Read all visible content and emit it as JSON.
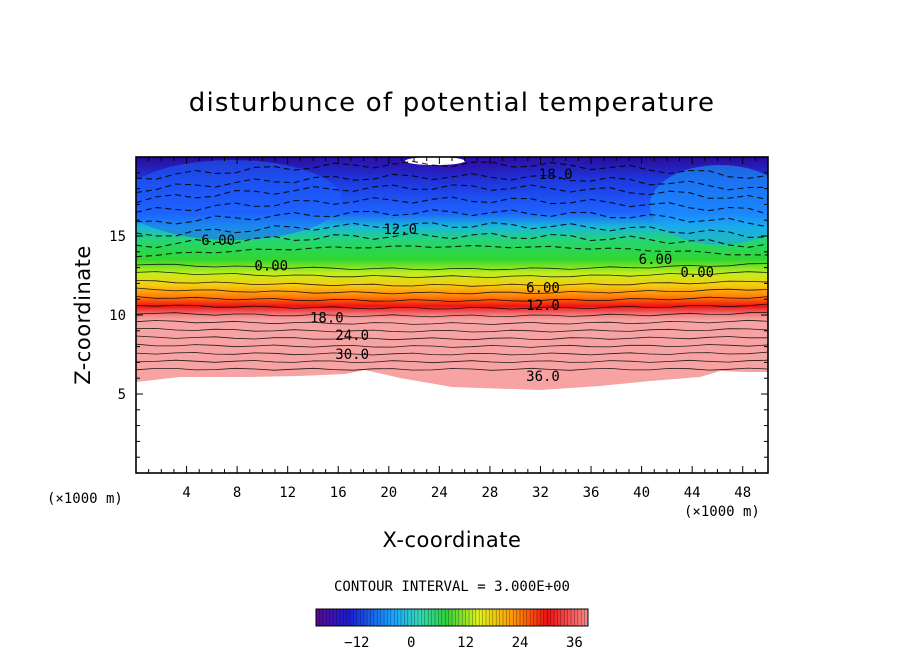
{
  "chart_data": {
    "type": "heatmap",
    "title": "disturbunce of potential temperature",
    "xlabel": "X-coordinate",
    "ylabel": "Z-coordinate",
    "x_unit": "(×1000 m)",
    "x_unit_right": "(×1000 m)",
    "xlim": [
      0,
      50
    ],
    "ylim": [
      0,
      20
    ],
    "x_ticks": [
      4,
      8,
      12,
      16,
      20,
      24,
      28,
      32,
      36,
      40,
      44,
      48
    ],
    "y_ticks": [
      5,
      10,
      15
    ],
    "contour_interval_label": "CONTOUR INTERVAL = 3.000E+00",
    "contour_interval": 3,
    "colorbar": {
      "range": [
        -21,
        39
      ],
      "ticks": [
        -12,
        0,
        12,
        24,
        36
      ],
      "colormap": "rainbow",
      "colors": [
        "#5a0a8c",
        "#1b1bd6",
        "#19a3ff",
        "#36d6b8",
        "#2ed23a",
        "#e1f21a",
        "#ff9a0a",
        "#f01010",
        "#f58a8a"
      ]
    },
    "contour_labels": [
      {
        "text": "18.0",
        "x": 33.2,
        "z": 18.9
      },
      {
        "text": "12.0",
        "x": 20.9,
        "z": 15.4
      },
      {
        "text": "6.00",
        "x": 6.5,
        "z": 14.7
      },
      {
        "text": "6.00",
        "x": 41.1,
        "z": 13.5
      },
      {
        "text": "0.00",
        "x": 10.7,
        "z": 13.1
      },
      {
        "text": "0.00",
        "x": 44.4,
        "z": 12.7
      },
      {
        "text": "6.00",
        "x": 32.2,
        "z": 11.7
      },
      {
        "text": "12.0",
        "x": 32.2,
        "z": 10.6
      },
      {
        "text": "18.0",
        "x": 15.1,
        "z": 9.8
      },
      {
        "text": "24.0",
        "x": 17.1,
        "z": 8.7
      },
      {
        "text": "30.0",
        "x": 17.1,
        "z": 7.5
      },
      {
        "text": "36.0",
        "x": 32.2,
        "z": 6.1
      }
    ],
    "notes": "Field is negative (cold, purple/blue) in the upper layer z>13 km and positive (warm, green to red) below; no data below about z=6 km."
  }
}
